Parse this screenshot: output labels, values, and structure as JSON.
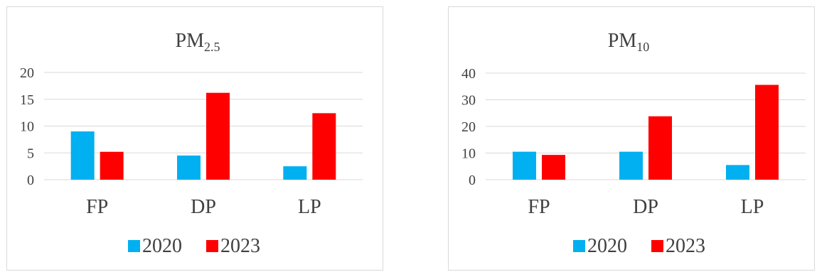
{
  "colors": {
    "s2020": "#00b0f0",
    "s2023": "#ff0000"
  },
  "chart_data": [
    {
      "type": "bar",
      "title": "PM",
      "title_subscript": "2.5",
      "categories": [
        "FP",
        "DP",
        "LP"
      ],
      "series": [
        {
          "name": "2020",
          "values": [
            9.0,
            4.5,
            2.5
          ]
        },
        {
          "name": "2023",
          "values": [
            5.2,
            16.2,
            12.4
          ]
        }
      ],
      "ylim": [
        0,
        20
      ],
      "yticks": [
        "0",
        "5",
        "10",
        "15",
        "20"
      ],
      "grid": true,
      "legend": "bottom"
    },
    {
      "type": "bar",
      "title": "PM",
      "title_subscript": "10",
      "categories": [
        "FP",
        "DP",
        "LP"
      ],
      "series": [
        {
          "name": "2020",
          "values": [
            10.5,
            10.5,
            5.5
          ]
        },
        {
          "name": "2023",
          "values": [
            9.3,
            23.8,
            35.6
          ]
        }
      ],
      "ylim": [
        0,
        40
      ],
      "yticks": [
        "0",
        "10",
        "20",
        "30",
        "40"
      ],
      "grid": true,
      "legend": "bottom"
    }
  ]
}
